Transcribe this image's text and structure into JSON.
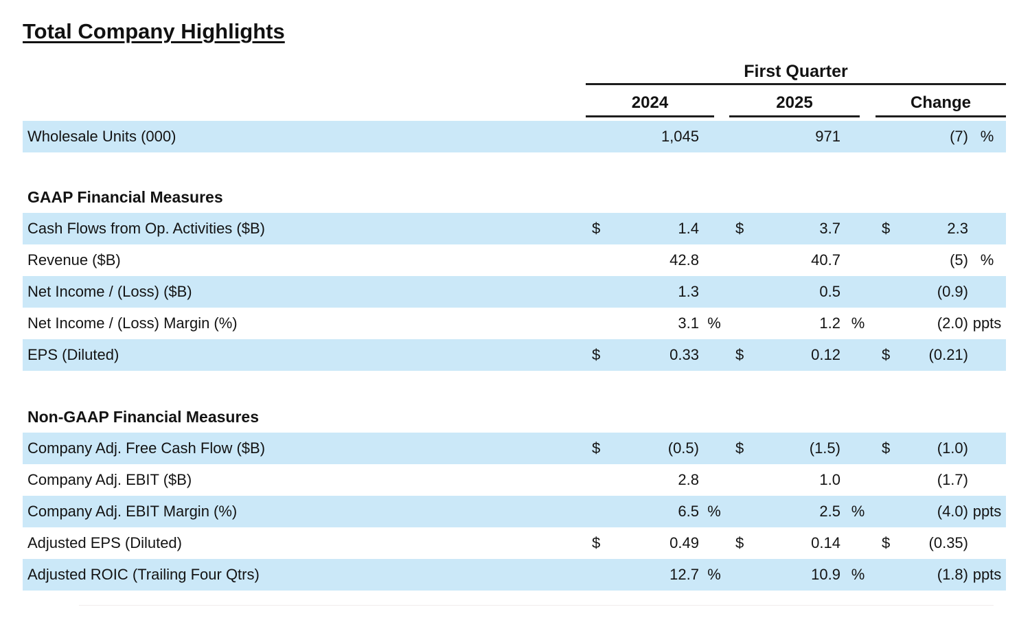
{
  "page": {
    "band_color": "#cbe8f8",
    "text_color": "#131313",
    "rule_color": "#1d1d1d"
  },
  "title": "Total Company Highlights",
  "header": {
    "group_label": "First Quarter",
    "columns": [
      "2024",
      "2025",
      "Change"
    ]
  },
  "table": {
    "sections": [
      {
        "heading": null,
        "rows": [
          {
            "label": "Wholesale Units (000)",
            "shaded": true,
            "cells": [
              "",
              "1,045",
              "",
              "",
              "971",
              "",
              "",
              "(7)",
              "%"
            ]
          }
        ]
      },
      {
        "heading": "GAAP Financial Measures",
        "rows": [
          {
            "label": "Cash Flows from Op. Activities ($B)",
            "shaded": true,
            "cells": [
              "$",
              "1.4",
              "",
              "$",
              "3.7",
              "",
              "$",
              "2.3",
              ""
            ]
          },
          {
            "label": "Revenue ($B)",
            "shaded": false,
            "cells": [
              "",
              "42.8",
              "",
              "",
              "40.7",
              "",
              "",
              "(5)",
              "%"
            ]
          },
          {
            "label": "Net Income / (Loss) ($B)",
            "shaded": true,
            "cells": [
              "",
              "1.3",
              "",
              "",
              "0.5",
              "",
              "",
              "(0.9)",
              ""
            ]
          },
          {
            "label": "Net Income / (Loss) Margin (%)",
            "shaded": false,
            "cells": [
              "",
              "3.1",
              "%",
              "",
              "1.2",
              "%",
              "",
              "(2.0)",
              "ppts"
            ]
          },
          {
            "label": "EPS (Diluted)",
            "shaded": true,
            "cells": [
              "$",
              "0.33",
              "",
              "$",
              "0.12",
              "",
              "$",
              "(0.21)",
              ""
            ]
          }
        ]
      },
      {
        "heading": "Non-GAAP Financial Measures",
        "rows": [
          {
            "label": "Company Adj. Free Cash Flow ($B)",
            "shaded": true,
            "cells": [
              "$",
              "(0.5)",
              "",
              "$",
              "(1.5)",
              "",
              "$",
              "(1.0)",
              ""
            ]
          },
          {
            "label": "Company Adj. EBIT ($B)",
            "shaded": false,
            "cells": [
              "",
              "2.8",
              "",
              "",
              "1.0",
              "",
              "",
              "(1.7)",
              ""
            ]
          },
          {
            "label": "Company Adj. EBIT Margin (%)",
            "shaded": true,
            "cells": [
              "",
              "6.5",
              "%",
              "",
              "2.5",
              "%",
              "",
              "(4.0)",
              "ppts"
            ]
          },
          {
            "label": "Adjusted EPS (Diluted)",
            "shaded": false,
            "cells": [
              "$",
              "0.49",
              "",
              "$",
              "0.14",
              "",
              "$",
              "(0.35)",
              ""
            ]
          },
          {
            "label": "Adjusted ROIC (Trailing Four Qtrs)",
            "shaded": true,
            "cells": [
              "",
              "12.7",
              "%",
              "",
              "10.9",
              "%",
              "",
              "(1.8)",
              "ppts"
            ]
          }
        ]
      }
    ]
  }
}
